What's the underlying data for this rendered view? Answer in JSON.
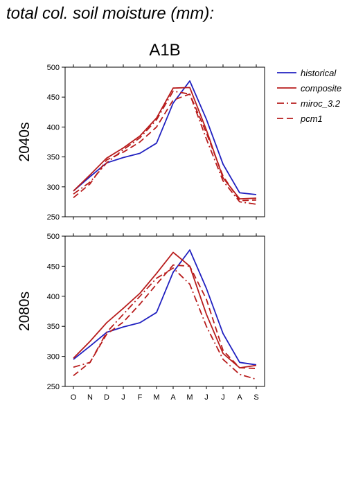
{
  "title": "total col. soil moisture (mm):",
  "colors": {
    "historical": "#2020c0",
    "projection": "#b81c1c"
  },
  "chart_data": {
    "type": "line",
    "title": "A1B",
    "months": [
      "O",
      "N",
      "D",
      "J",
      "F",
      "M",
      "A",
      "M",
      "J",
      "J",
      "A",
      "S"
    ],
    "ylim": [
      250,
      500
    ],
    "yticks": [
      250,
      300,
      350,
      400,
      450,
      500
    ],
    "legend": [
      {
        "name": "historical",
        "style": "solid",
        "color": "#2020c0"
      },
      {
        "name": "composite",
        "style": "solid",
        "color": "#b81c1c"
      },
      {
        "name": "miroc_3.2",
        "style": "dashdot",
        "color": "#b81c1c"
      },
      {
        "name": "pcm1",
        "style": "dashed",
        "color": "#b81c1c"
      }
    ],
    "panels": [
      {
        "label": "2040s",
        "series": [
          {
            "name": "historical",
            "values": [
              293,
              317,
              340,
              349,
              356,
              373,
              440,
              477,
              413,
              338,
              290,
              287
            ]
          },
          {
            "name": "composite",
            "values": [
              293,
              320,
              348,
              365,
              385,
              415,
              465,
              466,
              395,
              315,
              280,
              281
            ]
          },
          {
            "name": "miroc_3.2",
            "values": [
              288,
              308,
              340,
              362,
              382,
              412,
              460,
              455,
              380,
              310,
              275,
              271
            ]
          },
          {
            "name": "pcm1",
            "values": [
              282,
              305,
              345,
              358,
              375,
              400,
              445,
              455,
              390,
              318,
              277,
              278
            ]
          }
        ]
      },
      {
        "label": "2080s",
        "series": [
          {
            "name": "historical",
            "values": [
              295,
              317,
              340,
              349,
              356,
              373,
              440,
              477,
              413,
              338,
              290,
              286
            ]
          },
          {
            "name": "composite",
            "values": [
              297,
              325,
              356,
              380,
              405,
              438,
              473,
              450,
              370,
              305,
              281,
              285
            ]
          },
          {
            "name": "miroc_3.2",
            "values": [
              282,
              290,
              340,
              370,
              400,
              430,
              447,
              420,
              350,
              295,
              270,
              262
            ]
          },
          {
            "name": "pcm1",
            "values": [
              268,
              290,
              337,
              357,
              387,
              420,
              452,
              450,
              395,
              310,
              281,
              280
            ]
          }
        ]
      }
    ]
  }
}
